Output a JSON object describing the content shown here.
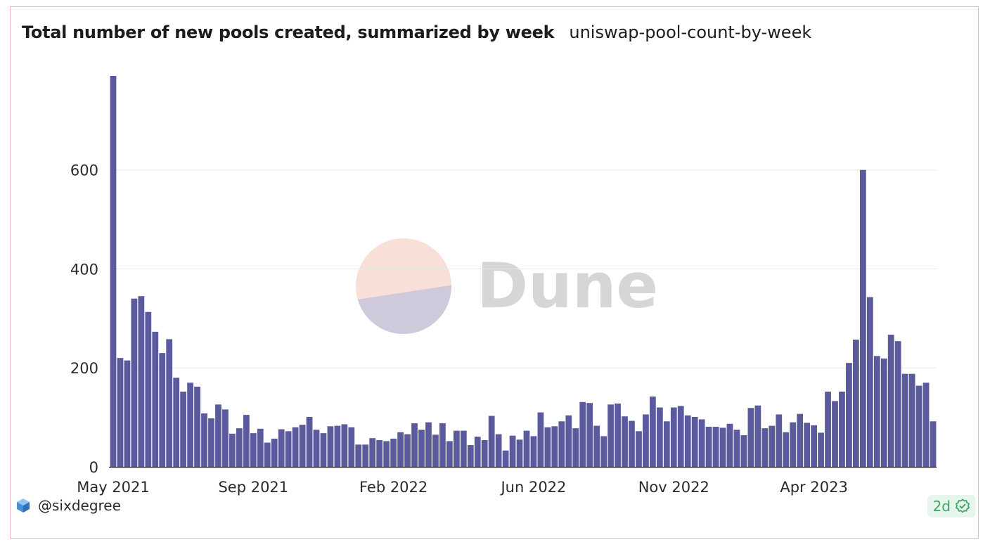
{
  "header": {
    "title": "Total number of new pools created, summarized by week",
    "query_name": "uniswap-pool-count-by-week"
  },
  "watermark": {
    "text": "Dune"
  },
  "footer": {
    "username": "@sixdegree",
    "freshness": "2d"
  },
  "colors": {
    "bar": "#5a5a9c",
    "grid": "#e8e8e8",
    "card_border": "#f0b6b6",
    "badge_green": "#3fa66a"
  },
  "chart_data": {
    "type": "bar",
    "title": "Total number of new pools created, summarized by week",
    "xlabel": "",
    "ylabel": "",
    "ylim": [
      0,
      790
    ],
    "y_ticks": [
      0,
      200,
      400,
      600
    ],
    "x_tick_labels": [
      "May 2021",
      "Sep 2021",
      "Feb 2022",
      "Jun 2022",
      "Nov 2022",
      "Apr 2023"
    ],
    "x_tick_bar_index": [
      0,
      20,
      40,
      60,
      80,
      100
    ],
    "grid": true,
    "values": [
      790,
      220,
      215,
      340,
      345,
      313,
      273,
      230,
      258,
      180,
      152,
      170,
      162,
      108,
      98,
      126,
      116,
      67,
      78,
      105,
      68,
      77,
      49,
      57,
      76,
      72,
      80,
      85,
      101,
      75,
      68,
      82,
      83,
      86,
      80,
      45,
      45,
      58,
      54,
      52,
      57,
      70,
      66,
      88,
      75,
      90,
      65,
      88,
      52,
      73,
      73,
      44,
      61,
      54,
      103,
      66,
      33,
      63,
      55,
      73,
      62,
      110,
      80,
      82,
      92,
      104,
      78,
      131,
      129,
      83,
      62,
      126,
      128,
      102,
      93,
      72,
      106,
      142,
      120,
      92,
      120,
      123,
      104,
      101,
      96,
      81,
      81,
      79,
      87,
      75,
      64,
      119,
      124,
      78,
      83,
      106,
      70,
      90,
      107,
      89,
      84,
      69,
      152,
      133,
      152,
      210,
      257,
      600,
      343,
      224,
      219,
      267,
      254,
      188,
      188,
      164,
      170,
      92
    ]
  }
}
